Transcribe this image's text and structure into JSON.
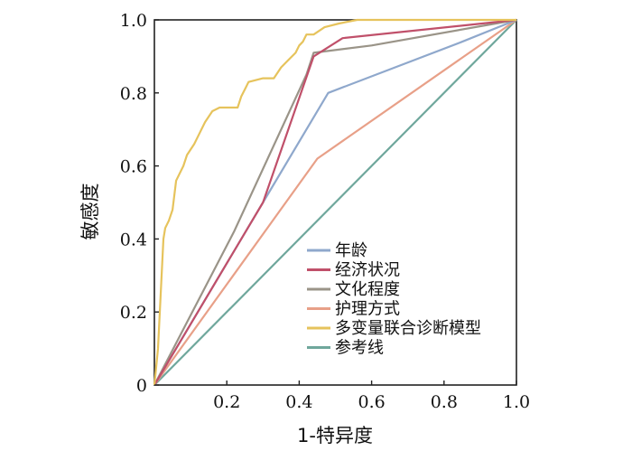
{
  "chart_data": {
    "type": "line",
    "title": "",
    "xlabel": "1-特异度",
    "ylabel": "敏感度",
    "xlim": [
      0,
      1
    ],
    "ylim": [
      0,
      1
    ],
    "xticks": [
      "0.2",
      "0.4",
      "0.6",
      "0.8",
      "1.0"
    ],
    "yticks": [
      "0",
      "0.2",
      "0.4",
      "0.6",
      "0.8",
      "1.0"
    ],
    "grid": false,
    "legend": "bottom-right",
    "series": [
      {
        "name": "年龄",
        "color": "#8fa8cc",
        "points": [
          [
            0,
            0
          ],
          [
            0.3,
            0.5
          ],
          [
            0.48,
            0.8
          ],
          [
            0.85,
            0.94
          ],
          [
            1,
            1
          ]
        ]
      },
      {
        "name": "经济状况",
        "color": "#c0506a",
        "points": [
          [
            0,
            0
          ],
          [
            0.3,
            0.5
          ],
          [
            0.44,
            0.9
          ],
          [
            0.52,
            0.95
          ],
          [
            1,
            1
          ]
        ]
      },
      {
        "name": "文化程度",
        "color": "#9a9488",
        "points": [
          [
            0,
            0
          ],
          [
            0.22,
            0.42
          ],
          [
            0.42,
            0.85
          ],
          [
            0.44,
            0.91
          ],
          [
            0.6,
            0.93
          ],
          [
            1,
            1
          ]
        ]
      },
      {
        "name": "护理方式",
        "color": "#e8a088",
        "points": [
          [
            0,
            0
          ],
          [
            0.45,
            0.62
          ],
          [
            1,
            1
          ]
        ]
      },
      {
        "name": "多变量联合诊断模型",
        "color": "#e6c35c",
        "points": [
          [
            0,
            0
          ],
          [
            0.005,
            0.05
          ],
          [
            0.01,
            0.1
          ],
          [
            0.015,
            0.2
          ],
          [
            0.02,
            0.3
          ],
          [
            0.025,
            0.4
          ],
          [
            0.03,
            0.43
          ],
          [
            0.04,
            0.45
          ],
          [
            0.05,
            0.48
          ],
          [
            0.06,
            0.56
          ],
          [
            0.08,
            0.6
          ],
          [
            0.09,
            0.63
          ],
          [
            0.11,
            0.66
          ],
          [
            0.12,
            0.68
          ],
          [
            0.14,
            0.72
          ],
          [
            0.16,
            0.75
          ],
          [
            0.18,
            0.76
          ],
          [
            0.23,
            0.76
          ],
          [
            0.24,
            0.79
          ],
          [
            0.25,
            0.81
          ],
          [
            0.26,
            0.83
          ],
          [
            0.3,
            0.84
          ],
          [
            0.33,
            0.84
          ],
          [
            0.35,
            0.87
          ],
          [
            0.37,
            0.89
          ],
          [
            0.39,
            0.91
          ],
          [
            0.4,
            0.93
          ],
          [
            0.41,
            0.94
          ],
          [
            0.42,
            0.96
          ],
          [
            0.44,
            0.96
          ],
          [
            0.47,
            0.98
          ],
          [
            0.51,
            0.99
          ],
          [
            0.56,
            1.0
          ],
          [
            1,
            1.0
          ]
        ]
      },
      {
        "name": "参考线",
        "color": "#6fa79c",
        "points": [
          [
            0,
            0
          ],
          [
            1,
            1
          ]
        ]
      }
    ]
  }
}
